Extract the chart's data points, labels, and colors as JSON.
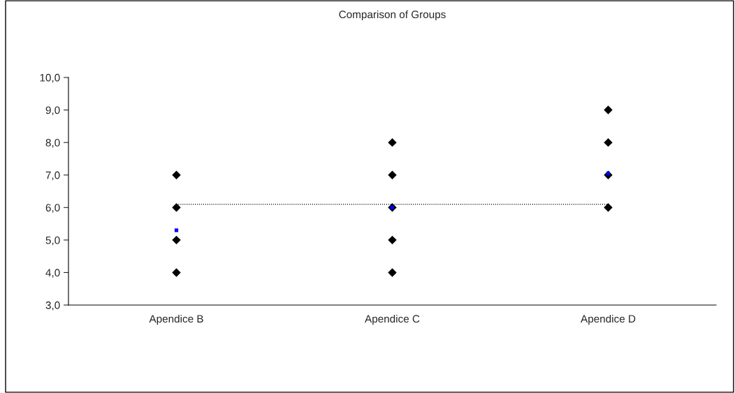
{
  "chart_data": {
    "type": "scatter",
    "title": "Comparison of Groups",
    "categories": [
      "Apendice B",
      "Apendice C",
      "Apendice D"
    ],
    "series": [
      {
        "marker": "diamond",
        "color": "#000000",
        "x": [
          "Apendice B",
          "Apendice B",
          "Apendice B",
          "Apendice B",
          "Apendice C",
          "Apendice C",
          "Apendice C",
          "Apendice C",
          "Apendice C",
          "Apendice D",
          "Apendice D",
          "Apendice D",
          "Apendice D"
        ],
        "values": [
          7,
          6,
          5,
          4,
          8,
          7,
          6,
          5,
          4,
          9,
          8,
          7,
          6
        ]
      },
      {
        "type": "scatter",
        "marker": "square",
        "color": "#0000ff",
        "x": [
          "Apendice B",
          "Apendice C",
          "Apendice D"
        ],
        "values": [
          5.3,
          6.0,
          7.05
        ]
      }
    ],
    "ref_lines": [
      {
        "axis": "y",
        "value": 6.1,
        "color": "#000000",
        "line_style": "dotted"
      }
    ],
    "ylim": [
      3,
      10
    ],
    "yticks": [
      {
        "value": 3,
        "label": "3,0"
      },
      {
        "value": 4,
        "label": "4,0"
      },
      {
        "value": 5,
        "label": "5,0"
      },
      {
        "value": 6,
        "label": "6,0"
      },
      {
        "value": 7,
        "label": "7,0"
      },
      {
        "value": 8,
        "label": "8,0"
      },
      {
        "value": 9,
        "label": "9,0"
      },
      {
        "value": 10,
        "label": "10,0"
      }
    ],
    "grid": false,
    "legend": false
  }
}
